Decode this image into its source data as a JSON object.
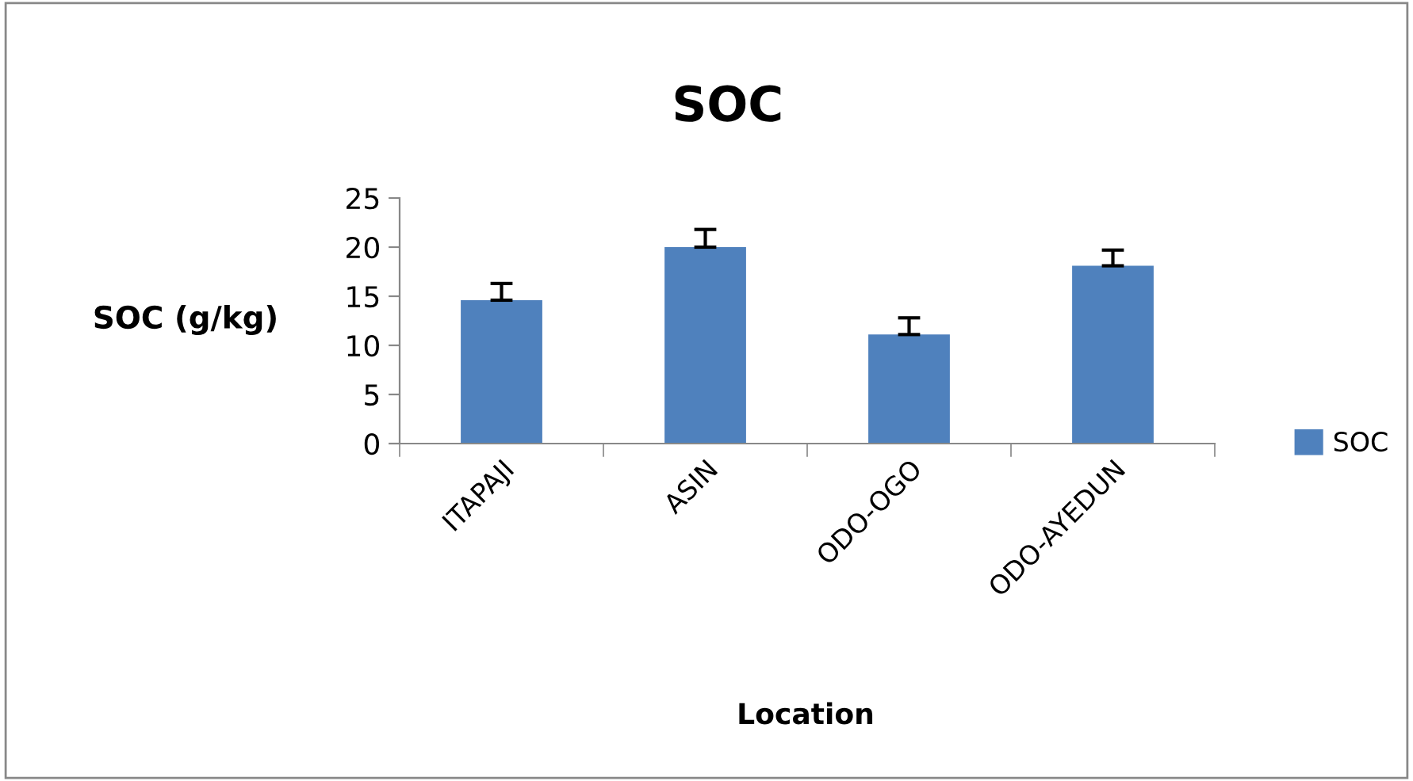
{
  "chart_data": {
    "type": "bar",
    "title": "SOC",
    "xlabel": "Location",
    "ylabel": "SOC (g/kg)",
    "categories": [
      "ITAPAJI",
      "ASIN",
      "ODO-OGO",
      "ODO-AYEDUN"
    ],
    "series": [
      {
        "name": "SOC",
        "color": "#4f81bd",
        "values": [
          14.6,
          20.0,
          11.1,
          18.1
        ],
        "errors": [
          [
            14.6,
            16.3
          ],
          [
            20.0,
            21.8
          ],
          [
            11.1,
            12.8
          ],
          [
            18.1,
            19.7
          ]
        ]
      }
    ],
    "ylim": [
      0,
      25
    ],
    "yticks": [
      0,
      5,
      10,
      15,
      20,
      25
    ],
    "grid": false,
    "legend": "right"
  }
}
